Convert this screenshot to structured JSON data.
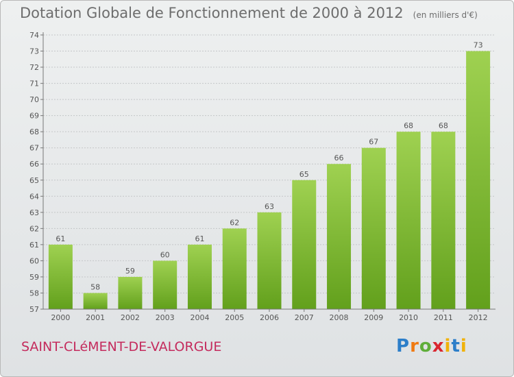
{
  "header": {
    "title": "Dotation Globale de Fonctionnement de 2000 à 2012",
    "subtitle": "(en milliers d'€)"
  },
  "footer": {
    "commune": "SAINT-CLéMENT-DE-VALORGUE",
    "logo_text": "Proxiti"
  },
  "colors": {
    "bar_top": "#9fd151",
    "bar_bottom": "#62a01c",
    "commune_text": "#c42a5c",
    "text": "#6d6d6d"
  },
  "chart_data": {
    "type": "bar",
    "title": "Dotation Globale de Fonctionnement de 2000 à 2012",
    "subtitle": "(en milliers d'€)",
    "categories": [
      "2000",
      "2001",
      "2002",
      "2003",
      "2004",
      "2005",
      "2006",
      "2007",
      "2008",
      "2009",
      "2010",
      "2011",
      "2012"
    ],
    "values": [
      61,
      58,
      59,
      60,
      61,
      62,
      63,
      65,
      66,
      67,
      68,
      68,
      73
    ],
    "ylim": [
      57,
      74
    ],
    "yticks": [
      57,
      58,
      59,
      60,
      61,
      62,
      63,
      64,
      65,
      66,
      67,
      68,
      69,
      70,
      71,
      72,
      73,
      74
    ],
    "xlabel": "",
    "ylabel": "",
    "grid": true
  }
}
